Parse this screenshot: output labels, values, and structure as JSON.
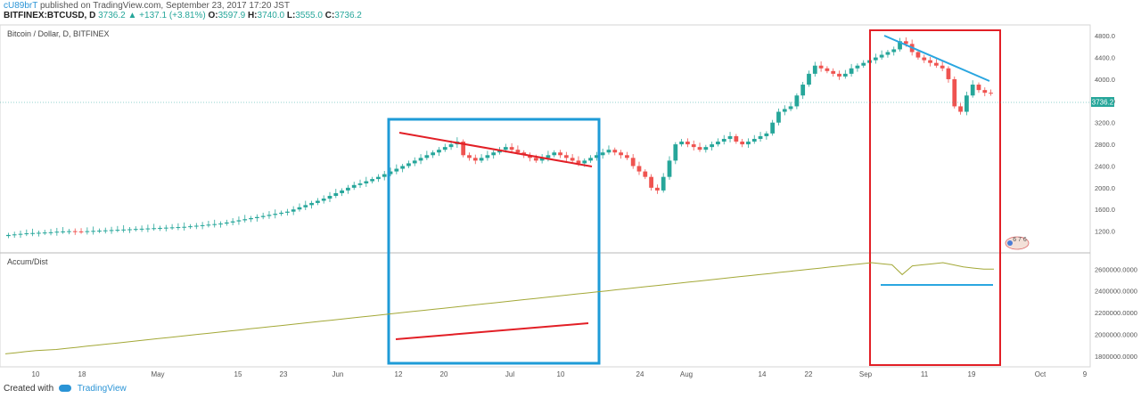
{
  "header": {
    "author": "cU89brT",
    "published": "published on TradingView.com, September 23, 2017 17:20 JST",
    "symbol": "BITFINEX:BTCUSD, D",
    "last": "3736.2",
    "change": "▲ +137.1 (+3.81%)",
    "ohlc": [
      {
        "label": "O:",
        "value": "3597.9"
      },
      {
        "label": "H:",
        "value": "3740.0"
      },
      {
        "label": "L:",
        "value": "3555.0"
      },
      {
        "label": "C:",
        "value": "3736.2"
      }
    ]
  },
  "footer": {
    "created_with": "Created with",
    "brand": "TradingView"
  },
  "colors": {
    "up": "#26a69a",
    "down": "#ef5350",
    "blue_box": "#1e9bd7",
    "red_box": "#e21f26",
    "accum_line": "#a3a837",
    "red_trend": "#e21f26",
    "blue_trend": "#2aa6e0"
  },
  "chart_data": [
    {
      "type": "candlestick",
      "title": "Bitcoin / Dollar, D, BITFINEX",
      "ylim": [
        800,
        5000
      ],
      "y_ticks": [
        "4800.0",
        "4400.0",
        "4000.0",
        "3600.0",
        "3200.0",
        "2800.0",
        "2400.0",
        "2000.0",
        "1600.0",
        "1200.0"
      ],
      "last_price_label": "3736.2",
      "x_ticks": [
        "10",
        "18",
        "May",
        "15",
        "23",
        "Jun",
        "12",
        "20",
        "Jul",
        "10",
        "24",
        "Aug",
        "14",
        "22",
        "Sep",
        "11",
        "19",
        "Oct",
        "9"
      ],
      "indicator_badge": "6 7 6",
      "closes": [
        1130,
        1140,
        1150,
        1160,
        1165,
        1170,
        1175,
        1180,
        1190,
        1195,
        1200,
        1195,
        1190,
        1200,
        1205,
        1210,
        1215,
        1220,
        1225,
        1230,
        1235,
        1240,
        1245,
        1250,
        1255,
        1260,
        1265,
        1270,
        1275,
        1280,
        1290,
        1300,
        1310,
        1320,
        1330,
        1340,
        1360,
        1380,
        1400,
        1420,
        1440,
        1460,
        1480,
        1500,
        1520,
        1540,
        1560,
        1600,
        1640,
        1680,
        1720,
        1760,
        1800,
        1850,
        1900,
        1950,
        2000,
        2050,
        2080,
        2120,
        2160,
        2200,
        2250,
        2300,
        2350,
        2400,
        2450,
        2500,
        2550,
        2600,
        2650,
        2700,
        2750,
        2800,
        2850,
        2600,
        2550,
        2500,
        2550,
        2600,
        2650,
        2700,
        2750,
        2700,
        2650,
        2600,
        2550,
        2500,
        2550,
        2600,
        2650,
        2600,
        2550,
        2500,
        2450,
        2500,
        2550,
        2600,
        2650,
        2700,
        2650,
        2600,
        2550,
        2400,
        2300,
        2200,
        2000,
        1950,
        2200,
        2500,
        2800,
        2850,
        2800,
        2750,
        2700,
        2750,
        2800,
        2850,
        2900,
        2950,
        2850,
        2800,
        2850,
        2900,
        2950,
        3000,
        3200,
        3400,
        3450,
        3500,
        3700,
        3900,
        4100,
        4250,
        4200,
        4150,
        4100,
        4050,
        4100,
        4200,
        4250,
        4300,
        4350,
        4400,
        4450,
        4500,
        4550,
        4700,
        4650,
        4500,
        4400,
        4350,
        4300,
        4250,
        4200,
        4000,
        3500,
        3400,
        3700,
        3900,
        3800,
        3750,
        3736
      ],
      "accum_dist": {
        "ylim": [
          1700000,
          2750000
        ],
        "y_ticks": [
          "2600000.0000",
          "2400000.0000",
          "2200000.0000",
          "2000000.0000",
          "1800000.0000"
        ],
        "label": "Accum/Dist",
        "values": [
          1820000,
          1830000,
          1840000,
          1850000,
          1855000,
          1860000,
          1870000,
          1880000,
          1890000,
          1900000,
          1910000,
          1920000,
          1930000,
          1940000,
          1950000,
          1960000,
          1970000,
          1980000,
          1990000,
          2000000,
          2010000,
          2020000,
          2030000,
          2040000,
          2050000,
          2060000,
          2070000,
          2080000,
          2090000,
          2100000,
          2110000,
          2120000,
          2130000,
          2140000,
          2150000,
          2160000,
          2170000,
          2180000,
          2190000,
          2200000,
          2210000,
          2220000,
          2230000,
          2240000,
          2250000,
          2260000,
          2270000,
          2280000,
          2290000,
          2300000,
          2310000,
          2320000,
          2330000,
          2340000,
          2350000,
          2360000,
          2370000,
          2380000,
          2390000,
          2400000,
          2410000,
          2420000,
          2430000,
          2440000,
          2450000,
          2460000,
          2470000,
          2480000,
          2490000,
          2500000,
          2510000,
          2520000,
          2530000,
          2540000,
          2550000,
          2560000,
          2570000,
          2580000,
          2590000,
          2600000,
          2610000,
          2620000,
          2630000,
          2640000,
          2650000,
          2660000,
          2650000,
          2640000,
          2550000,
          2630000,
          2640000,
          2650000,
          2660000,
          2640000,
          2620000,
          2610000,
          2600000,
          2600000
        ]
      }
    }
  ]
}
